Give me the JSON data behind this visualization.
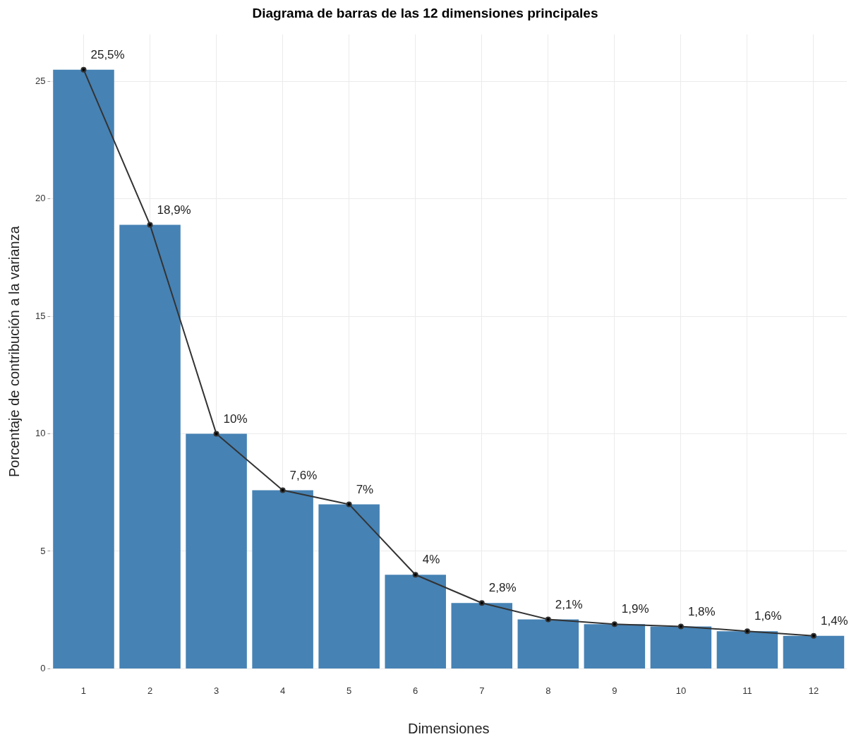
{
  "chart_data": {
    "type": "bar",
    "title": "Diagrama de barras de las 12 dimensiones principales",
    "xlabel": "Dimensiones",
    "ylabel": "Porcentaje de contribución a la varianza",
    "categories": [
      "1",
      "2",
      "3",
      "4",
      "5",
      "6",
      "7",
      "8",
      "9",
      "10",
      "11",
      "12"
    ],
    "series": [
      {
        "color": "#4682b4",
        "values": [
          25.5,
          18.9,
          10,
          7.6,
          7,
          4,
          2.8,
          2.1,
          1.9,
          1.8,
          1.6,
          1.4
        ],
        "value_labels": [
          "25,5%",
          "18,9%",
          "10%",
          "7,6%",
          "7%",
          "4%",
          "2,8%",
          "2,1%",
          "1,9%",
          "1,8%",
          "1,6%",
          "1,4%"
        ]
      },
      {
        "type": "line",
        "color": "#333333",
        "values": [
          25.5,
          18.9,
          10,
          7.6,
          7,
          4,
          2.8,
          2.1,
          1.9,
          1.8,
          1.6,
          1.4
        ]
      }
    ],
    "ylim": [
      0,
      27
    ],
    "yticks": [
      0,
      5,
      10,
      15,
      20,
      25
    ],
    "grid": true,
    "marker": "circle",
    "legend": false
  }
}
